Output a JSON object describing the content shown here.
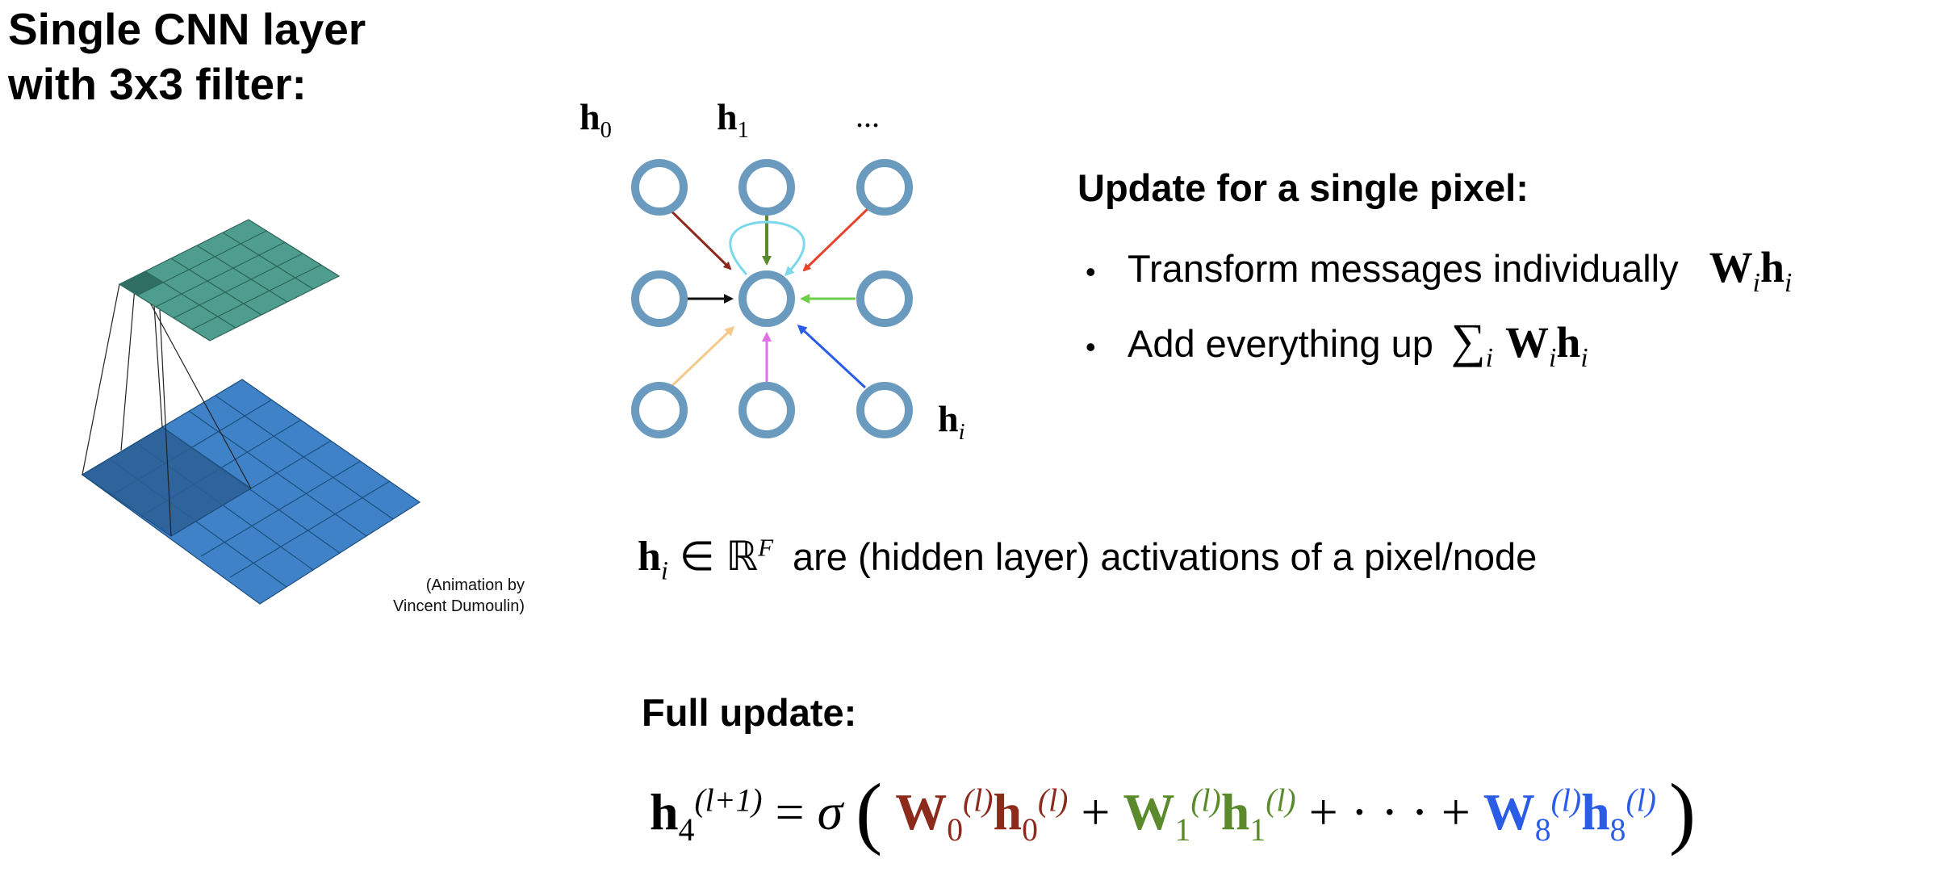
{
  "title": {
    "line1": "Single CNN layer",
    "line2": "with 3x3 filter:"
  },
  "credit": {
    "line1": "(Animation by",
    "line2": "Vincent Dumoulin)"
  },
  "graph_labels": {
    "h0_base": "h",
    "h0_sub": "0",
    "h1_base": "h",
    "h1_sub": "1",
    "ellipsis": "...",
    "hi_base": "h",
    "hi_sub": "i"
  },
  "single_pixel": {
    "heading": "Update for a single pixel:",
    "bullet1_text": "Transform messages individually",
    "bullet2_text": "Add everything up",
    "bullet_symbol": "•"
  },
  "activation": {
    "text": "are (hidden layer) activations of a pixel/node",
    "set": "ℝ",
    "set_exp": "F",
    "elem": "∈"
  },
  "full_update": {
    "heading": "Full update:",
    "sup_next": "(l+1)",
    "sup_l": "(l)",
    "sigma": "σ",
    "ellipsis": "· · ·",
    "plus": "+",
    "equals": "="
  },
  "colors": {
    "node_stroke": "#6a9bbf",
    "arrow_top_left": "#8c2a1c",
    "arrow_top": "#5a8a2c",
    "arrow_top_right": "#e8432a",
    "arrow_left": "#111111",
    "arrow_right": "#6ad04a",
    "arrow_bottom_left": "#f5c98a",
    "arrow_bottom": "#e070e8",
    "arrow_bottom_right": "#2a5ce6",
    "self_loop": "#7ad8ea",
    "w0": "#8c2a1c",
    "w1": "#5a8a2c",
    "w8": "#2a5ce6",
    "grid_top": "#4f9d8e",
    "grid_bottom": "#3f82c7"
  }
}
